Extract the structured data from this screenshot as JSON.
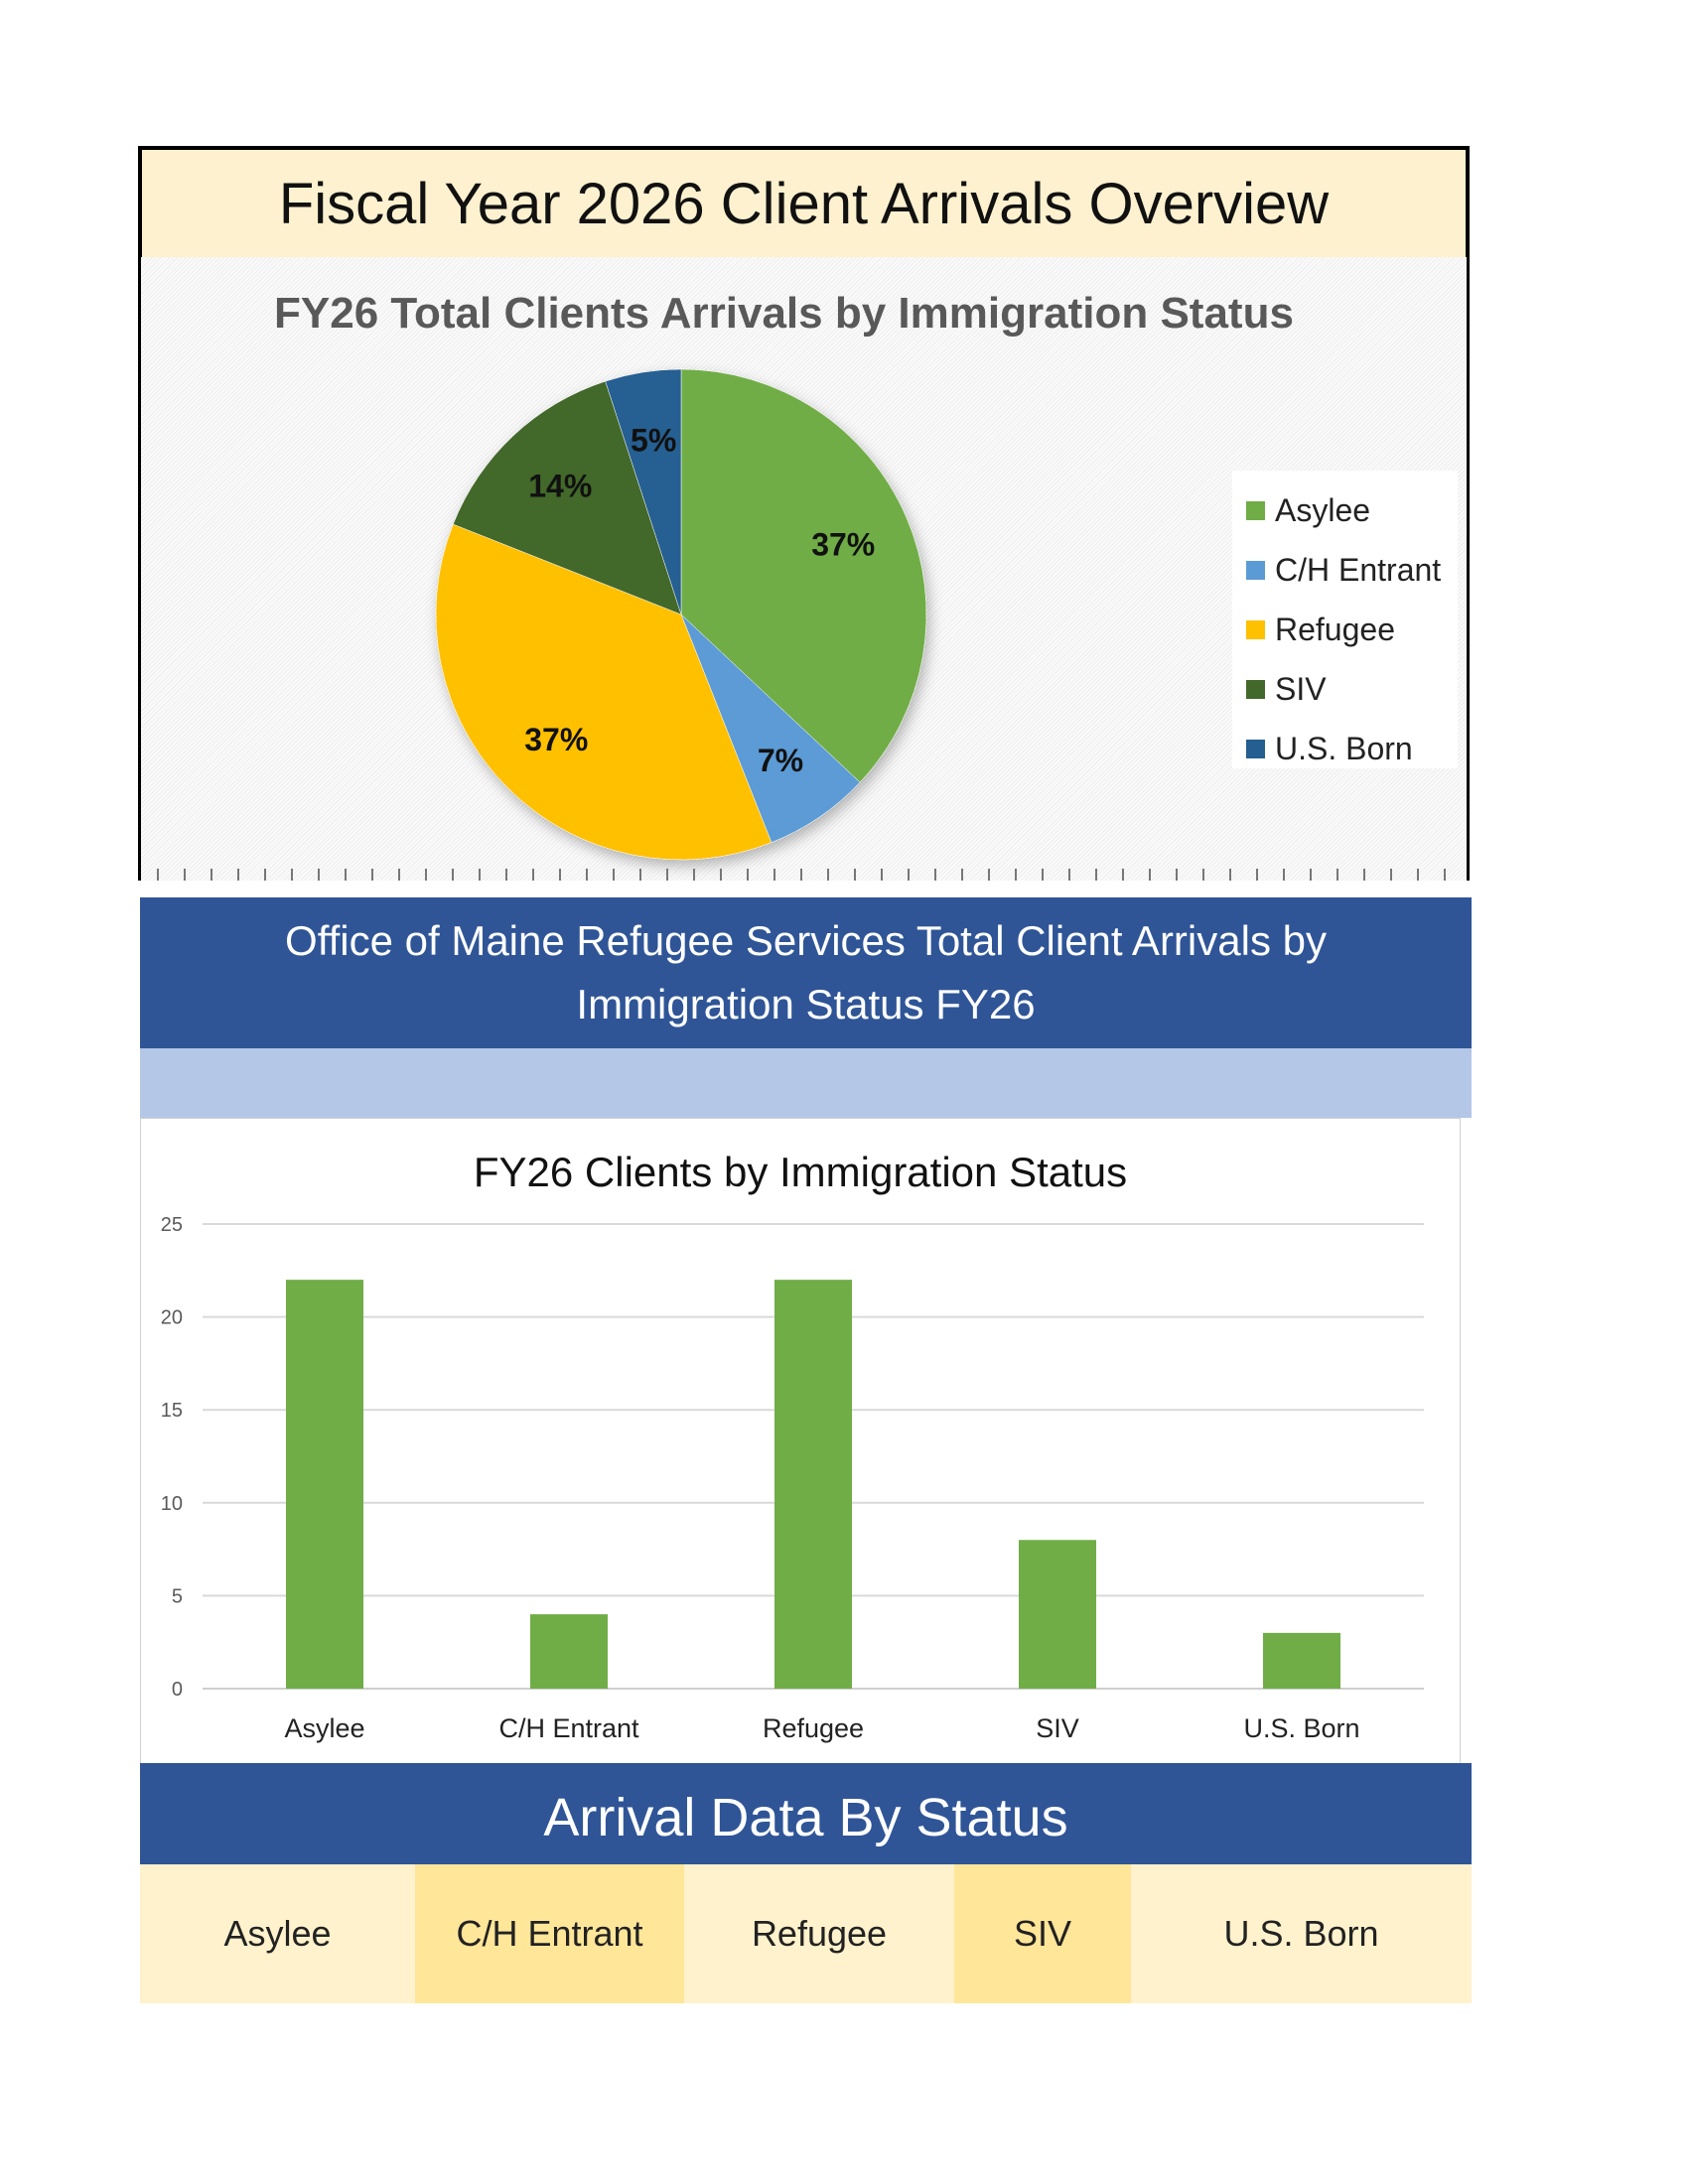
{
  "header": {
    "title": "Fiscal Year 2026 Client Arrivals Overview"
  },
  "sections": {
    "office_title": "Office of Maine Refugee Services Total Client Arrivals by Immigration Status FY26",
    "arrival_title": "Arrival Data By Status"
  },
  "status_table": {
    "cells": [
      "Asylee",
      "C/H Entrant",
      "Refugee",
      "SIV",
      "U.S. Born"
    ],
    "colors": [
      "#fff2cc",
      "#ffe699",
      "#fff2cc",
      "#ffe699",
      "#fff2cc"
    ]
  },
  "chart_data": [
    {
      "type": "pie",
      "title": "FY26 Total Clients Arrivals by Immigration Status",
      "legend_position": "right",
      "categories": [
        "Asylee",
        "C/H Entrant",
        "Refugee",
        "SIV",
        "U.S. Born"
      ],
      "values": [
        37,
        7,
        37,
        14,
        5
      ],
      "labels": [
        "37%",
        "7%",
        "37%",
        "14%",
        "5%"
      ],
      "colors": [
        "#70ad47",
        "#5b9bd5",
        "#ffc000",
        "#43682b",
        "#255e91"
      ]
    },
    {
      "type": "bar",
      "title": "FY26 Clients by Immigration Status",
      "categories": [
        "Asylee",
        "C/H Entrant",
        "Refugee",
        "SIV",
        "U.S. Born"
      ],
      "values": [
        22,
        4,
        22,
        8,
        3
      ],
      "ylim": [
        0,
        25
      ],
      "yticks": [
        "0",
        "5",
        "10",
        "15",
        "20",
        "25"
      ],
      "grid": true,
      "color": "#70ad47"
    }
  ]
}
